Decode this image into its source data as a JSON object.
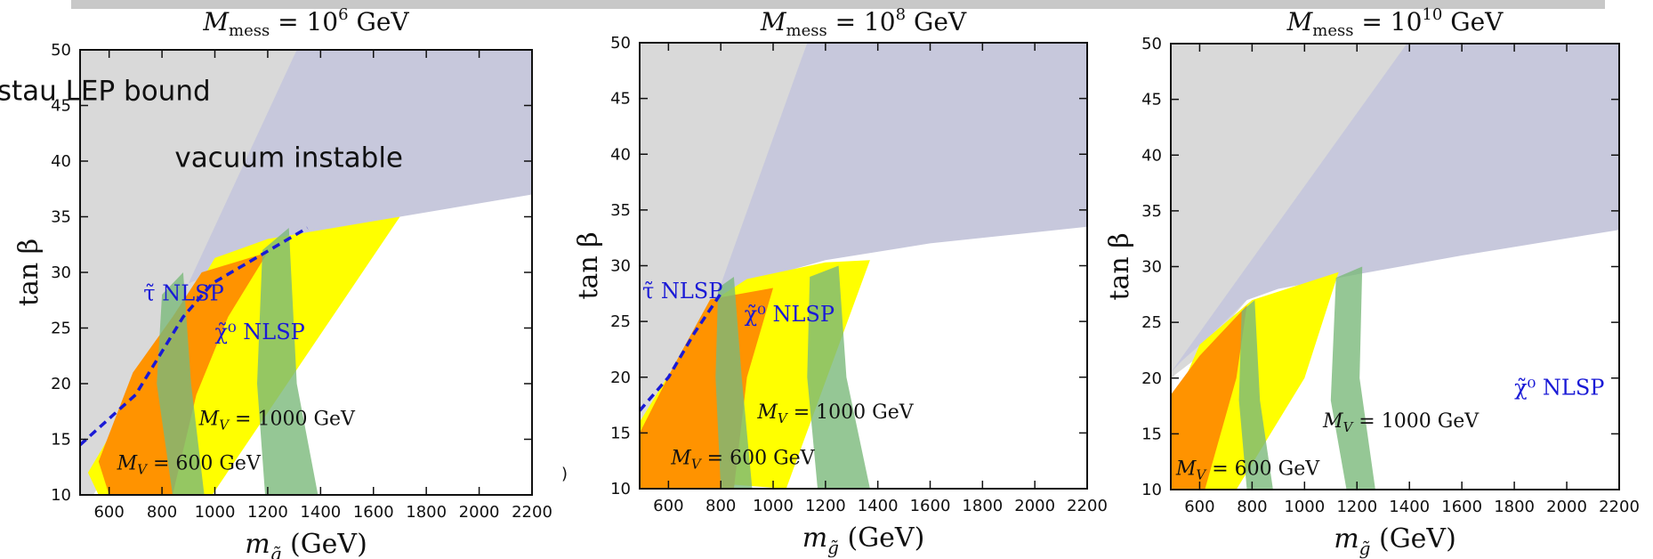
{
  "chart_data": [
    {
      "type": "area",
      "title": "M_mess = 10^6 GeV",
      "title_parts": {
        "m": "M",
        "sub": "mess",
        "eq": " = 10",
        "exp": "6",
        "unit": " GeV"
      },
      "xlabel_parts": {
        "m": "m",
        "sub": "g̃",
        "unit": " (GeV)"
      },
      "ylabel": "tan β",
      "xlim": [
        490,
        2200
      ],
      "ylim": [
        10,
        50
      ],
      "xticks": [
        "600",
        "800",
        "1000",
        "1200",
        "1400",
        "1600",
        "1800",
        "2000",
        "2200"
      ],
      "yticks": [
        "10",
        "15",
        "20",
        "25",
        "30",
        "35",
        "40",
        "45",
        "50"
      ],
      "regions": {
        "stau_lep": [
          [
            490,
            10
          ],
          [
            490,
            50
          ],
          [
            1310,
            50
          ],
          [
            1000,
            32
          ],
          [
            840,
            24
          ],
          [
            640,
            14
          ],
          [
            540,
            10
          ]
        ],
        "vacuum": [
          [
            1310,
            50
          ],
          [
            2200,
            50
          ],
          [
            2200,
            37
          ],
          [
            1700,
            35
          ],
          [
            1400,
            33
          ],
          [
            1150,
            31.5
          ],
          [
            900,
            29
          ]
        ],
        "yellow": [
          [
            560,
            10
          ],
          [
            520,
            12
          ],
          [
            1000,
            31.3
          ],
          [
            1200,
            33
          ],
          [
            1700,
            35
          ],
          [
            990,
            10
          ]
        ],
        "orange": [
          [
            600,
            10
          ],
          [
            560,
            13
          ],
          [
            690,
            21
          ],
          [
            840,
            26
          ],
          [
            950,
            30
          ],
          [
            1200,
            31.8
          ],
          [
            1050,
            26
          ],
          [
            930,
            19
          ],
          [
            840,
            10
          ]
        ],
        "green_600": [
          [
            840,
            10
          ],
          [
            780,
            20
          ],
          [
            800,
            28
          ],
          [
            880,
            30
          ],
          [
            910,
            20
          ],
          [
            960,
            10
          ]
        ],
        "green_1000": [
          [
            1190,
            10
          ],
          [
            1160,
            20
          ],
          [
            1180,
            32
          ],
          [
            1280,
            34
          ],
          [
            1310,
            20
          ],
          [
            1390,
            10
          ]
        ]
      },
      "boundary_line": [
        [
          490,
          14.5
        ],
        [
          700,
          19
        ],
        [
          880,
          26
        ],
        [
          990,
          29
        ],
        [
          1350,
          34
        ]
      ],
      "labels": {
        "stau": "stau LEP bound",
        "vacuum": "vacuum instable",
        "tau_nlsp": "τ̃ NLSP",
        "chi_nlsp": "χ̃⁰ NLSP",
        "mv1000": "M_V = 1000 GeV",
        "mv600": "M_V = 600 GeV"
      },
      "label_pos": {
        "stau": [
          580,
          45.5
        ],
        "vacuum": [
          1280,
          39.5
        ],
        "tau_nlsp": [
          730,
          27.5
        ],
        "chi_nlsp": [
          1000,
          24
        ],
        "mv1000": [
          940,
          16.3
        ],
        "mv600": [
          630,
          12.3
        ]
      }
    },
    {
      "type": "area",
      "title": "M_mess = 10^8 GeV",
      "title_parts": {
        "m": "M",
        "sub": "mess",
        "eq": " = 10",
        "exp": "8",
        "unit": " GeV"
      },
      "xlabel_parts": {
        "m": "m",
        "sub": "g̃",
        "unit": " (GeV)"
      },
      "ylabel": "tan β",
      "xlim": [
        490,
        2200
      ],
      "ylim": [
        10,
        50
      ],
      "xticks": [
        "600",
        "800",
        "1000",
        "1200",
        "1400",
        "1600",
        "1800",
        "2000",
        "2200"
      ],
      "yticks": [
        "10",
        "15",
        "20",
        "25",
        "30",
        "35",
        "40",
        "45",
        "50"
      ],
      "regions": {
        "stau_lep": [
          [
            490,
            10
          ],
          [
            490,
            50
          ],
          [
            1130,
            50
          ],
          [
            880,
            33
          ],
          [
            730,
            24
          ],
          [
            600,
            14
          ],
          [
            500,
            10
          ]
        ],
        "vacuum": [
          [
            1130,
            50
          ],
          [
            2200,
            50
          ],
          [
            2200,
            33.5
          ],
          [
            1600,
            32
          ],
          [
            1200,
            30.5
          ],
          [
            900,
            28.5
          ],
          [
            780,
            27
          ]
        ],
        "yellow": [
          [
            490,
            11
          ],
          [
            490,
            16
          ],
          [
            780,
            27
          ],
          [
            900,
            28.8
          ],
          [
            1200,
            30.3
          ],
          [
            1370,
            30.5
          ],
          [
            1050,
            10
          ]
        ],
        "orange": [
          [
            490,
            10
          ],
          [
            490,
            15
          ],
          [
            620,
            21
          ],
          [
            760,
            27
          ],
          [
            1000,
            28
          ],
          [
            900,
            20
          ],
          [
            850,
            10
          ]
        ],
        "green_600": [
          [
            800,
            10
          ],
          [
            780,
            20
          ],
          [
            790,
            28
          ],
          [
            850,
            29
          ],
          [
            880,
            20
          ],
          [
            920,
            10
          ]
        ],
        "green_1000": [
          [
            1170,
            10
          ],
          [
            1130,
            20
          ],
          [
            1140,
            29
          ],
          [
            1250,
            30
          ],
          [
            1280,
            20
          ],
          [
            1370,
            10
          ]
        ]
      },
      "boundary_line": [
        [
          490,
          17
        ],
        [
          600,
          20
        ],
        [
          700,
          24
        ],
        [
          800,
          27.5
        ]
      ],
      "labels": {
        "tau_nlsp": "τ̃ NLSP",
        "chi_nlsp": "χ̃⁰ NLSP",
        "mv1000": "M_V = 1000 GeV",
        "mv600": "M_V = 600 GeV"
      },
      "label_pos": {
        "tau_nlsp": [
          500,
          27.1
        ],
        "chi_nlsp": [
          890,
          25
        ],
        "mv1000": [
          940,
          16.3
        ],
        "mv600": [
          610,
          12.2
        ]
      }
    },
    {
      "type": "area",
      "title": "M_mess = 10^10 GeV",
      "title_parts": {
        "m": "M",
        "sub": "mess",
        "eq": " = 10",
        "exp": "10",
        "unit": " GeV"
      },
      "xlabel_parts": {
        "m": "m",
        "sub": "g̃",
        "unit": " (GeV)"
      },
      "ylabel": "tan β",
      "xlim": [
        490,
        2200
      ],
      "ylim": [
        10,
        50
      ],
      "xticks": [
        "600",
        "800",
        "1000",
        "1200",
        "1400",
        "1600",
        "1800",
        "2000",
        "2200"
      ],
      "yticks": [
        "10",
        "15",
        "20",
        "25",
        "30",
        "35",
        "40",
        "45",
        "50"
      ],
      "regions": {
        "stau_lep": [
          [
            490,
            20
          ],
          [
            490,
            50
          ],
          [
            1390,
            50
          ],
          [
            1050,
            36
          ],
          [
            780,
            27
          ],
          [
            600,
            22
          ]
        ],
        "vacuum": [
          [
            1390,
            50
          ],
          [
            2200,
            50
          ],
          [
            2200,
            33.3
          ],
          [
            1600,
            31
          ],
          [
            1200,
            29.3
          ],
          [
            900,
            28
          ],
          [
            780,
            27
          ],
          [
            650,
            24
          ],
          [
            530,
            21.5
          ],
          [
            490,
            20.5
          ]
        ],
        "yellow": [
          [
            490,
            10
          ],
          [
            490,
            17
          ],
          [
            600,
            23
          ],
          [
            800,
            27
          ],
          [
            1130,
            29.5
          ],
          [
            1000,
            20
          ],
          [
            740,
            10
          ]
        ],
        "orange": [
          [
            490,
            10
          ],
          [
            490,
            18.5
          ],
          [
            600,
            22
          ],
          [
            780,
            26.5
          ],
          [
            740,
            20
          ],
          [
            620,
            10
          ]
        ],
        "green_600": [
          [
            780,
            10
          ],
          [
            750,
            18
          ],
          [
            760,
            26
          ],
          [
            810,
            27
          ],
          [
            830,
            18
          ],
          [
            880,
            10
          ]
        ],
        "green_1000": [
          [
            1160,
            10
          ],
          [
            1100,
            18
          ],
          [
            1120,
            29
          ],
          [
            1220,
            30
          ],
          [
            1210,
            20
          ],
          [
            1270,
            10
          ]
        ]
      },
      "labels": {
        "chi_nlsp": "χ̃⁰ NLSP",
        "mv1000": "M_V = 1000 GeV",
        "mv600": "M_V = 600 GeV"
      },
      "label_pos": {
        "chi_nlsp": [
          1800,
          18.5
        ],
        "mv1000": [
          1070,
          15.6
        ],
        "mv600": [
          510,
          11.3
        ]
      }
    }
  ],
  "colors": {
    "stau_lep": "#d9d9d9",
    "vacuum": "#c7c8dc",
    "yellow": "#ffff00",
    "orange": "#ff9300",
    "green": "#7ab97a",
    "boundary": "#1a1ad6",
    "label_blue": "#1a1ad6"
  },
  "stray_mark": ")"
}
